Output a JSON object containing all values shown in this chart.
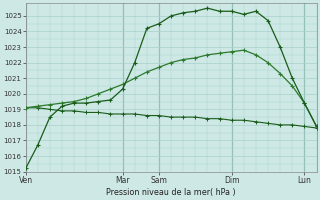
{
  "background_color": "#cde8e5",
  "grid_color": "#a8d0cc",
  "line_color_dark": "#1a5c1a",
  "line_color_med": "#2d7a2d",
  "xlabel": "Pression niveau de la mer( hPa )",
  "ylim": [
    1015,
    1025.8
  ],
  "yticks": [
    1015,
    1016,
    1017,
    1018,
    1019,
    1020,
    1021,
    1022,
    1023,
    1024,
    1025
  ],
  "xtick_labels": [
    "Ven",
    "Mar",
    "Sam",
    "Dim",
    "Lun"
  ],
  "xtick_positions": [
    0,
    8,
    11,
    17,
    23
  ],
  "n_points": 25,
  "line1_x": [
    0,
    1,
    2,
    3,
    4,
    5,
    6,
    7,
    8,
    9,
    10,
    11,
    12,
    13,
    14,
    15,
    16,
    17,
    18,
    19,
    20,
    21,
    22,
    23,
    24
  ],
  "line1_y": [
    1015.2,
    1016.7,
    1018.5,
    1019.2,
    1019.4,
    1019.4,
    1019.5,
    1019.6,
    1020.3,
    1022.0,
    1024.2,
    1024.5,
    1025.0,
    1025.2,
    1025.3,
    1025.5,
    1025.3,
    1025.3,
    1025.1,
    1025.3,
    1024.7,
    1023.0,
    1021.0,
    1019.4,
    1017.9
  ],
  "line2_x": [
    0,
    1,
    2,
    3,
    4,
    5,
    6,
    7,
    8,
    9,
    10,
    11,
    12,
    13,
    14,
    15,
    16,
    17,
    18,
    19,
    20,
    21,
    22,
    23,
    24
  ],
  "line2_y": [
    1019.1,
    1019.2,
    1019.3,
    1019.4,
    1019.5,
    1019.7,
    1020.0,
    1020.3,
    1020.6,
    1021.0,
    1021.4,
    1021.7,
    1022.0,
    1022.2,
    1022.3,
    1022.5,
    1022.6,
    1022.7,
    1022.8,
    1022.5,
    1022.0,
    1021.3,
    1020.5,
    1019.4,
    1017.9
  ],
  "line3_x": [
    0,
    1,
    2,
    3,
    4,
    5,
    6,
    7,
    8,
    9,
    10,
    11,
    12,
    13,
    14,
    15,
    16,
    17,
    18,
    19,
    20,
    21,
    22,
    23,
    24
  ],
  "line3_y": [
    1019.1,
    1019.1,
    1019.0,
    1018.9,
    1018.9,
    1018.8,
    1018.8,
    1018.7,
    1018.7,
    1018.7,
    1018.6,
    1018.6,
    1018.5,
    1018.5,
    1018.5,
    1018.4,
    1018.4,
    1018.3,
    1018.3,
    1018.2,
    1018.1,
    1018.0,
    1018.0,
    1017.9,
    1017.8
  ],
  "vline_x": [
    0,
    8,
    11,
    17,
    23
  ],
  "vline_color": "#6a9a97",
  "marker": "+"
}
